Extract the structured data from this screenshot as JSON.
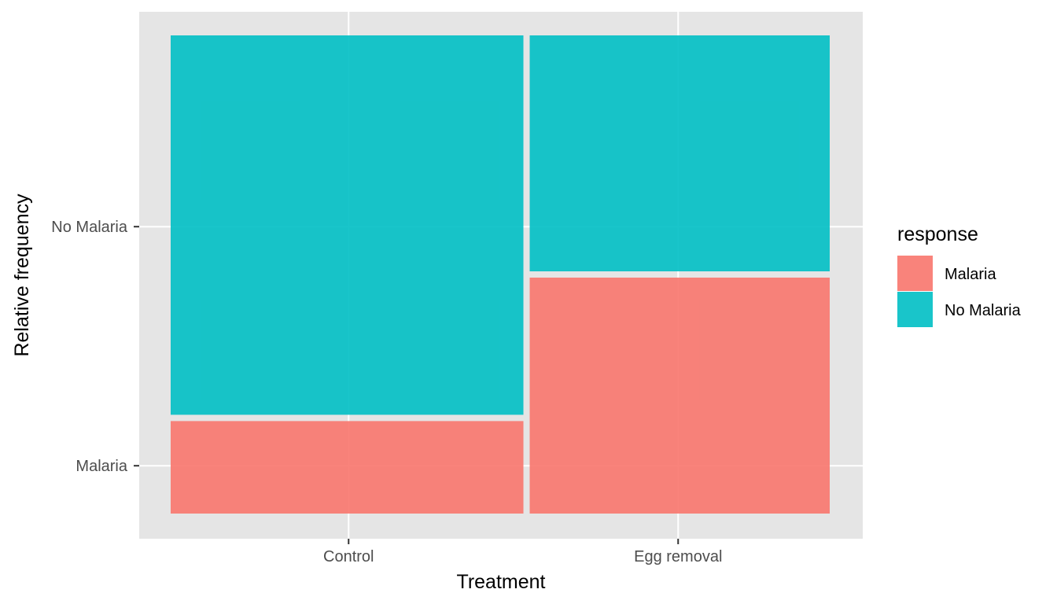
{
  "chart_data": {
    "type": "mosaic",
    "xlabel": "Treatment",
    "ylabel": "Relative frequency",
    "categories": [
      "Control",
      "Egg removal"
    ],
    "category_widths": [
      0.54,
      0.46
    ],
    "y_tick_labels": [
      "Malaria",
      "No Malaria"
    ],
    "series": [
      {
        "name": "Malaria",
        "color": "#F8766D",
        "values": [
          0.2,
          0.5
        ]
      },
      {
        "name": "No Malaria",
        "color": "#00BFC4",
        "values": [
          0.8,
          0.5
        ]
      }
    ],
    "legend": {
      "title": "response",
      "position": "right",
      "items": [
        {
          "label": "Malaria",
          "color": "#F8766D"
        },
        {
          "label": "No Malaria",
          "color": "#00BFC4"
        }
      ]
    },
    "grid": true,
    "panel_background": "#E5E5E5"
  }
}
